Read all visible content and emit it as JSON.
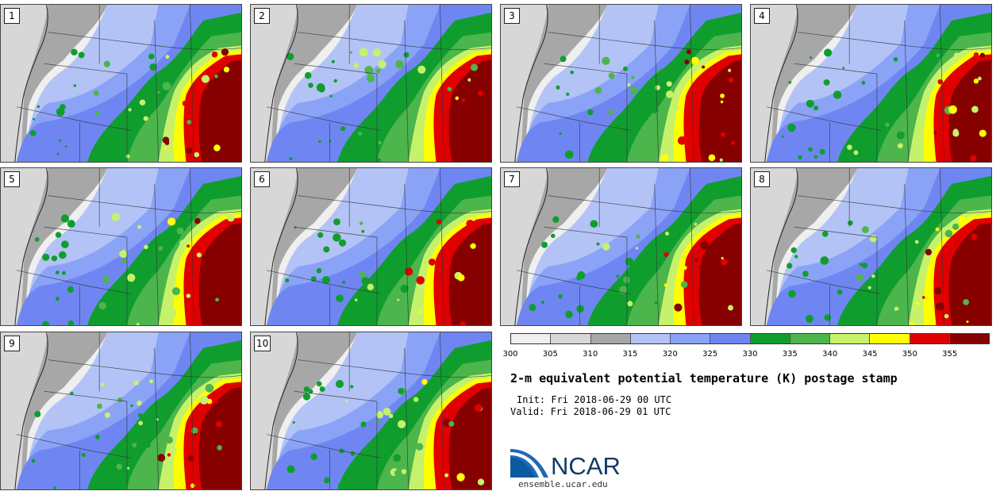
{
  "panels": [
    {
      "label": "1"
    },
    {
      "label": "2"
    },
    {
      "label": "3"
    },
    {
      "label": "4"
    },
    {
      "label": "5"
    },
    {
      "label": "6"
    },
    {
      "label": "7"
    },
    {
      "label": "8"
    },
    {
      "label": "9"
    },
    {
      "label": "10"
    }
  ],
  "colorbar": {
    "ticks": [
      "300",
      "305",
      "310",
      "315",
      "320",
      "325",
      "330",
      "335",
      "340",
      "345",
      "350",
      "355"
    ],
    "colors": [
      "#efefef",
      "#d7d7d7",
      "#a7a7a7",
      "#b3c3f6",
      "#8ba3f7",
      "#6f86f2",
      "#0f9e2e",
      "#4cb54c",
      "#c6f26b",
      "#ffff00",
      "#e00000",
      "#870000"
    ]
  },
  "title": "2-m equivalent potential temperature (K) postage stamp",
  "init": "Init: Fri 2018-06-29 00 UTC",
  "valid": "Valid: Fri 2018-06-29 01 UTC",
  "logo": {
    "name": "NCAR",
    "url": "ensemble.ucar.edu"
  }
}
